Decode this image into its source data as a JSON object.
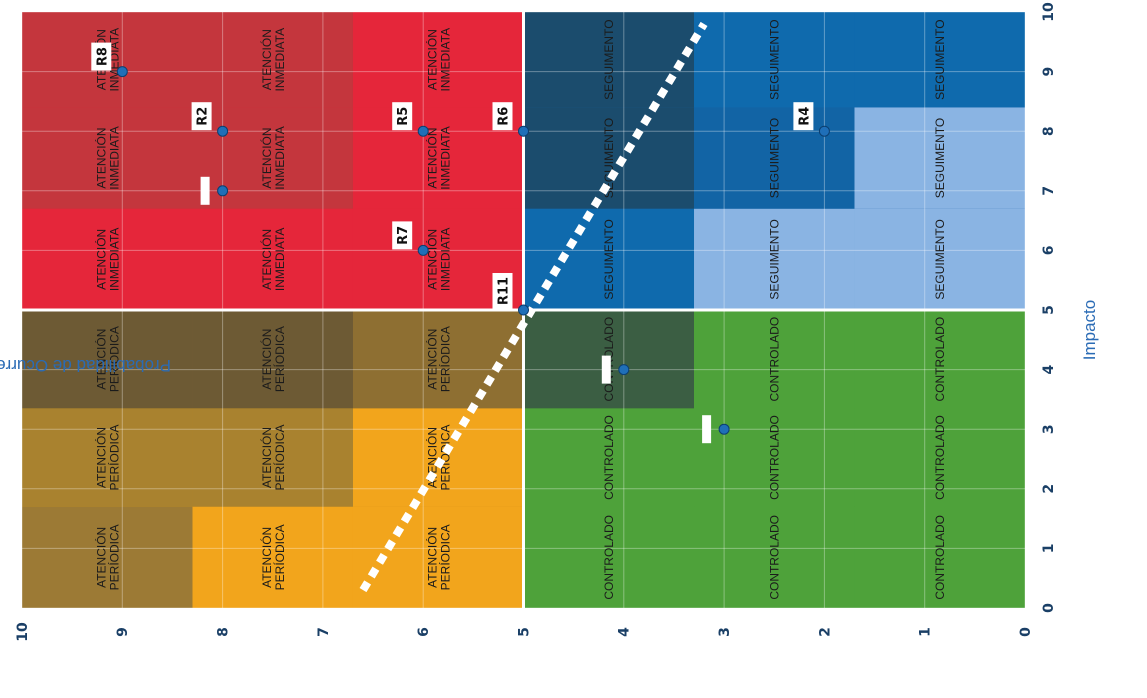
{
  "chart_data": {
    "type": "scatter",
    "title": "",
    "xlabel": "Impacto",
    "ylabel": "Probabilidad de Ocurrencia",
    "xlim": [
      0,
      10
    ],
    "ylim": [
      0,
      10
    ],
    "x_ticks": [
      "0",
      "1",
      "2",
      "3",
      "4",
      "5",
      "6",
      "7",
      "8",
      "9",
      "10"
    ],
    "y_ticks": [
      "0",
      "1",
      "2",
      "3",
      "4",
      "5",
      "6",
      "7",
      "8",
      "9",
      "10"
    ],
    "quadrants": [
      {
        "label": "ATENCIÓN INMEDIATA",
        "x_range": [
          5,
          10
        ],
        "y_range": [
          5,
          10
        ],
        "color": "#e02a35"
      },
      {
        "label": "ATENCIÓN PERÍODICA",
        "x_range": [
          0,
          5
        ],
        "y_range": [
          5,
          10
        ],
        "color": "#d08f18"
      },
      {
        "label": "SEGUIMENTO",
        "x_range": [
          5,
          10
        ],
        "y_range": [
          0,
          5
        ],
        "color": "#1a63a8"
      },
      {
        "label": "CONTROLADO",
        "x_range": [
          0,
          5
        ],
        "y_range": [
          0,
          5
        ],
        "color": "#4ea23a"
      }
    ],
    "cells": [
      {
        "x": 0.5,
        "y": 9,
        "text": "ATENCIÓN PERÍODICA",
        "shade": "#9c7a35"
      },
      {
        "x": 2.5,
        "y": 9,
        "text": "ATENCIÓN PERÍODICA",
        "shade": "#a9822f"
      },
      {
        "x": 4.2,
        "y": 9,
        "text": "ATENCIÓN PERÍODICA",
        "shade": "#6d5a34"
      },
      {
        "x": 0.5,
        "y": 8,
        "text": "ATENCIÓN PERÍODICA",
        "shade": "#f2a51c"
      },
      {
        "x": 2.5,
        "y": 8,
        "text": "ATENCIÓN PERÍODICA",
        "shade": "#a9822f"
      },
      {
        "x": 4.2,
        "y": 8,
        "text": "ATENCIÓN PERÍODICA",
        "shade": "#6d5a34"
      },
      {
        "x": 0.5,
        "y": 6,
        "text": "ATENCIÓN PERÍODICA",
        "shade": "#f2a51c"
      },
      {
        "x": 2.5,
        "y": 6,
        "text": "ATENCIÓN PERÍODICA",
        "shade": "#f2a51c"
      },
      {
        "x": 4.2,
        "y": 6,
        "text": "ATENCIÓN PERÍODICA",
        "shade": "#8e6f32"
      },
      {
        "x": 6,
        "y": 9,
        "text": "ATENCIÓN INMEDIATA",
        "shade": "#e5263a"
      },
      {
        "x": 7.7,
        "y": 9,
        "text": "ATENCIÓN INMEDIATA",
        "shade": "#c4363d"
      },
      {
        "x": 9.4,
        "y": 9,
        "text": "ATENCIÓN INMEDIATA",
        "shade": "#c4363d"
      },
      {
        "x": 6,
        "y": 8,
        "text": "ATENCIÓN INMEDIATA",
        "shade": "#e5263a"
      },
      {
        "x": 7.7,
        "y": 8,
        "text": "ATENCIÓN INMEDIATA",
        "shade": "#c4363d"
      },
      {
        "x": 9.4,
        "y": 8,
        "text": "ATENCIÓN INMEDIATA",
        "shade": "#c4363d"
      },
      {
        "x": 6,
        "y": 6,
        "text": "ATENCIÓN INMEDIATA",
        "shade": "#e5263a"
      },
      {
        "x": 7.7,
        "y": 6,
        "text": "ATENCIÓN INMEDIATA",
        "shade": "#e5263a"
      },
      {
        "x": 9.4,
        "y": 6,
        "text": "ATENCIÓN INMEDIATA",
        "shade": "#e5263a"
      },
      {
        "x": 6,
        "y": 4.2,
        "text": "SEGUIMENTO",
        "shade": "#0f6aad"
      },
      {
        "x": 7.7,
        "y": 4.2,
        "text": "SEGUIMENTO",
        "shade": "#1b4c6d"
      },
      {
        "x": 9.4,
        "y": 4.2,
        "text": "SEGUIMENTO",
        "shade": "#1b4c6d"
      },
      {
        "x": 6,
        "y": 2.5,
        "text": "SEGUIMENTO",
        "shade": "#8ab4e3"
      },
      {
        "x": 7.7,
        "y": 2.5,
        "text": "SEGUIMENTO",
        "shade": "#1264a5"
      },
      {
        "x": 9.4,
        "y": 2.5,
        "text": "SEGUIMENTO",
        "shade": "#0f6aad"
      },
      {
        "x": 6,
        "y": 0.5,
        "text": "SEGUIMENTO",
        "shade": "#8ab4e3"
      },
      {
        "x": 7.7,
        "y": 0.5,
        "text": "SEGUIMENTO",
        "shade": "#8ab4e3"
      },
      {
        "x": 9.4,
        "y": 0.5,
        "text": "SEGUIMENTO",
        "shade": "#0f6aad"
      },
      {
        "x": 0.5,
        "y": 4.2,
        "text": "CONTROLADO",
        "shade": "#4ea23a"
      },
      {
        "x": 2.5,
        "y": 4.2,
        "text": "CONTROLADO",
        "shade": "#4ea23a"
      },
      {
        "x": 4.2,
        "y": 4.2,
        "text": "CONTROLADO",
        "shade": "#3b5e43"
      },
      {
        "x": 0.5,
        "y": 2.5,
        "text": "CONTROLADO",
        "shade": "#4ea23a"
      },
      {
        "x": 2.5,
        "y": 2.5,
        "text": "CONTROLADO",
        "shade": "#4ea23a"
      },
      {
        "x": 4.2,
        "y": 2.5,
        "text": "CONTROLADO",
        "shade": "#4ea23a"
      },
      {
        "x": 0.5,
        "y": 0.5,
        "text": "CONTROLADO",
        "shade": "#4ea23a"
      },
      {
        "x": 2.5,
        "y": 0.5,
        "text": "CONTROLADO",
        "shade": "#4ea23a"
      },
      {
        "x": 4.2,
        "y": 0.5,
        "text": "CONTROLADO",
        "shade": "#4ea23a"
      }
    ],
    "points": [
      {
        "label": "R8",
        "x": 9,
        "y": 9
      },
      {
        "label": "R2",
        "x": 8,
        "y": 8
      },
      {
        "label": "",
        "x": 7,
        "y": 8
      },
      {
        "label": "R5",
        "x": 8,
        "y": 6
      },
      {
        "label": "R6",
        "x": 8,
        "y": 5
      },
      {
        "label": "R7",
        "x": 6,
        "y": 6
      },
      {
        "label": "R11",
        "x": 5,
        "y": 5
      },
      {
        "label": "R4",
        "x": 8,
        "y": 2
      },
      {
        "label": "",
        "x": 4,
        "y": 4
      },
      {
        "label": "",
        "x": 3,
        "y": 3
      }
    ],
    "trend_line": {
      "from": [
        0.3,
        6.6
      ],
      "to": [
        9.8,
        3.2
      ],
      "style": "dotted",
      "color": "#ffffff"
    },
    "marker_color": "#1f6fb8",
    "grid": true
  }
}
